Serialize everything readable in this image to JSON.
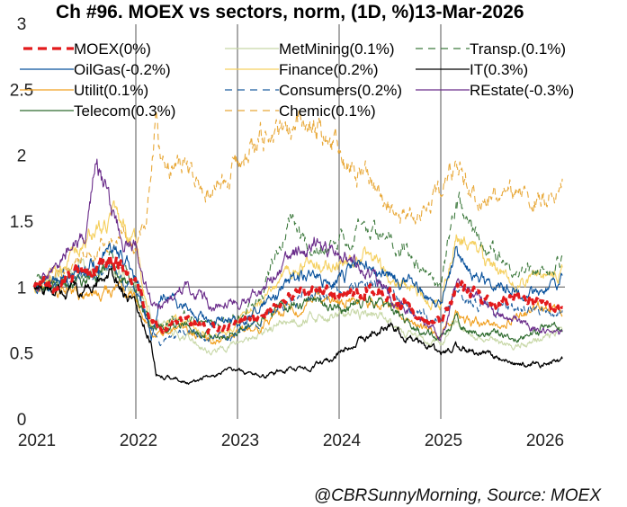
{
  "chart_data": {
    "type": "line",
    "title": "Ch #96. MOEX vs sectors, norm, (1D, %)13-Mar-2026",
    "xlabel": "",
    "ylabel": "",
    "xlim": [
      2021,
      2026.2
    ],
    "ylim": [
      0,
      3
    ],
    "x_ticks": [
      "2021",
      "2022",
      "2023",
      "2024",
      "2025",
      "2026"
    ],
    "y_ticks": [
      "0",
      "0.5",
      "1",
      "1.5",
      "2",
      "2.5",
      "3"
    ],
    "reference_line_y": 1,
    "vertical_gridlines_x": [
      2022,
      2023,
      2024,
      2025
    ],
    "legend_placement": "top",
    "source": "@CBRSunnyMorning, Source: MOEX",
    "series": [
      {
        "name": "MOEX",
        "label": "MOEX(0%)",
        "color": "#e31a1c",
        "style": "thick-dashed",
        "x": [
          2021.0,
          2021.25,
          2021.5,
          2021.75,
          2021.85,
          2022.0,
          2022.15,
          2022.25,
          2022.5,
          2022.75,
          2023.0,
          2023.25,
          2023.5,
          2023.75,
          2024.0,
          2024.25,
          2024.5,
          2024.75,
          2025.0,
          2025.15,
          2025.3,
          2025.5,
          2025.75,
          2026.0,
          2026.2
        ],
        "y": [
          1.0,
          1.04,
          1.1,
          1.2,
          1.17,
          1.05,
          0.72,
          0.7,
          0.75,
          0.68,
          0.7,
          0.8,
          0.95,
          0.98,
          0.92,
          0.98,
          0.97,
          0.8,
          0.7,
          1.0,
          0.97,
          0.88,
          0.9,
          0.85,
          0.85
        ]
      },
      {
        "name": "OilGas",
        "label": "OilGas(-0.2%)",
        "color": "#08519c",
        "style": "solid",
        "x": [
          2021.0,
          2021.25,
          2021.5,
          2021.75,
          2021.85,
          2022.0,
          2022.15,
          2022.25,
          2022.5,
          2022.75,
          2023.0,
          2023.25,
          2023.5,
          2023.75,
          2024.0,
          2024.25,
          2024.5,
          2024.75,
          2025.0,
          2025.15,
          2025.3,
          2025.5,
          2025.75,
          2026.0,
          2026.15,
          2026.2
        ],
        "y": [
          1.0,
          1.06,
          1.12,
          1.3,
          1.25,
          1.1,
          0.62,
          0.95,
          0.85,
          0.75,
          0.72,
          0.85,
          1.05,
          1.1,
          1.08,
          1.15,
          1.1,
          1.0,
          0.85,
          1.3,
          1.05,
          1.05,
          0.98,
          0.96,
          1.0,
          1.07
        ]
      },
      {
        "name": "Utilit",
        "label": "Utilit(0.1%)",
        "color": "#f0a020",
        "style": "solid",
        "x": [
          2021.0,
          2021.25,
          2021.5,
          2021.75,
          2022.0,
          2022.15,
          2022.25,
          2022.5,
          2022.75,
          2023.0,
          2023.25,
          2023.5,
          2023.75,
          2024.0,
          2024.25,
          2024.5,
          2024.75,
          2025.0,
          2025.15,
          2025.3,
          2025.5,
          2025.75,
          2026.0,
          2026.2
        ],
        "y": [
          1.0,
          0.97,
          0.92,
          1.0,
          0.95,
          0.65,
          0.65,
          0.68,
          0.58,
          0.65,
          0.72,
          0.85,
          0.9,
          0.88,
          0.92,
          0.88,
          0.72,
          0.65,
          0.8,
          0.72,
          0.72,
          0.8,
          0.85,
          0.78
        ]
      },
      {
        "name": "Telecom",
        "label": "Telecom(0.3%)",
        "color": "#2e6b2e",
        "style": "solid",
        "x": [
          2021.0,
          2021.25,
          2021.5,
          2021.75,
          2022.0,
          2022.15,
          2022.25,
          2022.5,
          2022.75,
          2023.0,
          2023.25,
          2023.5,
          2023.75,
          2024.0,
          2024.25,
          2024.5,
          2024.75,
          2025.0,
          2025.15,
          2025.3,
          2025.5,
          2025.75,
          2026.0,
          2026.2
        ],
        "y": [
          1.0,
          1.02,
          1.05,
          1.18,
          0.98,
          0.7,
          0.7,
          0.72,
          0.62,
          0.68,
          0.75,
          0.88,
          0.9,
          0.82,
          0.9,
          0.86,
          0.68,
          0.6,
          0.78,
          0.65,
          0.65,
          0.6,
          0.68,
          0.68
        ]
      },
      {
        "name": "MetMining",
        "label": "MetMining(0.1%)",
        "color": "#c8d8a8",
        "style": "solid",
        "x": [
          2021.0,
          2021.25,
          2021.5,
          2021.75,
          2022.0,
          2022.15,
          2022.25,
          2022.5,
          2022.75,
          2023.0,
          2023.25,
          2023.5,
          2023.75,
          2024.0,
          2024.25,
          2024.5,
          2024.75,
          2025.0,
          2025.15,
          2025.3,
          2025.5,
          2025.75,
          2026.0,
          2026.2
        ],
        "y": [
          1.0,
          1.08,
          1.12,
          1.15,
          1.0,
          0.78,
          0.7,
          0.62,
          0.5,
          0.58,
          0.65,
          0.75,
          0.78,
          0.78,
          0.8,
          0.76,
          0.62,
          0.58,
          0.7,
          0.6,
          0.58,
          0.55,
          0.62,
          0.66
        ]
      },
      {
        "name": "Finance",
        "label": "Finance(0.2%)",
        "color": "#f5d060",
        "style": "solid",
        "x": [
          2021.0,
          2021.25,
          2021.5,
          2021.75,
          2021.85,
          2022.0,
          2022.15,
          2022.25,
          2022.5,
          2022.75,
          2023.0,
          2023.25,
          2023.5,
          2023.75,
          2024.0,
          2024.25,
          2024.5,
          2024.75,
          2025.0,
          2025.15,
          2025.3,
          2025.5,
          2025.75,
          2026.0,
          2026.2
        ],
        "y": [
          1.0,
          1.15,
          1.35,
          1.55,
          1.45,
          1.3,
          0.68,
          0.72,
          0.75,
          0.62,
          0.72,
          0.92,
          1.1,
          1.2,
          1.15,
          1.28,
          1.1,
          0.98,
          0.85,
          1.4,
          1.25,
          1.15,
          1.0,
          1.1,
          1.15
        ]
      },
      {
        "name": "Consumers",
        "label": "Consumers(0.2%)",
        "color": "#1f5fa0",
        "style": "dashed",
        "x": [
          2021.0,
          2021.25,
          2021.5,
          2021.75,
          2022.0,
          2022.15,
          2022.25,
          2022.5,
          2022.75,
          2023.0,
          2023.25,
          2023.5,
          2023.75,
          2024.0,
          2024.25,
          2024.5,
          2024.75,
          2025.0,
          2025.15,
          2025.3,
          2025.5,
          2025.75,
          2026.0,
          2026.2
        ],
        "y": [
          1.0,
          1.05,
          1.08,
          1.12,
          1.0,
          0.68,
          0.6,
          0.65,
          0.6,
          0.65,
          0.75,
          0.88,
          0.92,
          0.95,
          1.05,
          0.98,
          0.85,
          0.72,
          0.95,
          0.88,
          0.85,
          0.85,
          0.83,
          0.83
        ]
      },
      {
        "name": "Chemic",
        "label": "Chemic(0.1%)",
        "color": "#e8a838",
        "style": "dashed",
        "x": [
          2021.0,
          2021.25,
          2021.5,
          2021.75,
          2022.0,
          2022.1,
          2022.2,
          2022.25,
          2022.5,
          2022.75,
          2023.0,
          2023.25,
          2023.5,
          2023.75,
          2024.0,
          2024.25,
          2024.5,
          2024.75,
          2025.0,
          2025.15,
          2025.3,
          2025.5,
          2025.75,
          2026.0,
          2026.2
        ],
        "y": [
          1.0,
          1.1,
          1.25,
          1.4,
          1.3,
          1.5,
          2.35,
          1.95,
          1.9,
          1.7,
          1.95,
          2.1,
          2.2,
          2.3,
          2.0,
          1.85,
          1.6,
          1.55,
          1.75,
          1.95,
          1.75,
          1.65,
          1.7,
          1.65,
          1.8
        ]
      },
      {
        "name": "Transp",
        "label": "Transp.(0.1%)",
        "color": "#3e7a3e",
        "style": "dashed",
        "x": [
          2021.0,
          2021.25,
          2021.5,
          2021.75,
          2022.0,
          2022.15,
          2022.25,
          2022.5,
          2022.75,
          2023.0,
          2023.25,
          2023.5,
          2023.75,
          2024.0,
          2024.25,
          2024.5,
          2024.75,
          2025.0,
          2025.15,
          2025.3,
          2025.5,
          2025.75,
          2026.0,
          2026.2
        ],
        "y": [
          1.0,
          1.05,
          1.1,
          1.2,
          1.05,
          0.7,
          0.72,
          0.78,
          0.7,
          0.78,
          0.95,
          1.5,
          1.25,
          1.35,
          1.5,
          1.35,
          1.2,
          1.0,
          1.65,
          1.45,
          1.3,
          1.1,
          1.15,
          1.2
        ]
      },
      {
        "name": "IT",
        "label": "IT(0.3%)",
        "color": "#000000",
        "style": "solid",
        "x": [
          2021.0,
          2021.25,
          2021.5,
          2021.75,
          2022.0,
          2022.15,
          2022.2,
          2022.5,
          2022.75,
          2023.0,
          2023.25,
          2023.5,
          2023.75,
          2024.0,
          2024.25,
          2024.5,
          2024.75,
          2025.0,
          2025.15,
          2025.3,
          2025.5,
          2025.75,
          2026.0,
          2026.2
        ],
        "y": [
          1.0,
          0.95,
          0.98,
          1.1,
          0.85,
          0.6,
          0.35,
          0.28,
          0.32,
          0.38,
          0.32,
          0.38,
          0.4,
          0.5,
          0.6,
          0.72,
          0.58,
          0.5,
          0.55,
          0.52,
          0.48,
          0.42,
          0.42,
          0.44
        ]
      },
      {
        "name": "REstate",
        "label": "REstate(-0.3%)",
        "color": "#6a2c8a",
        "style": "solid",
        "x": [
          2021.0,
          2021.25,
          2021.5,
          2021.6,
          2021.75,
          2021.85,
          2022.0,
          2022.15,
          2022.25,
          2022.5,
          2022.75,
          2023.0,
          2023.25,
          2023.5,
          2023.75,
          2024.0,
          2024.25,
          2024.5,
          2024.75,
          2025.0,
          2025.15,
          2025.3,
          2025.5,
          2025.75,
          2026.0,
          2026.2
        ],
        "y": [
          1.0,
          1.2,
          1.4,
          1.95,
          1.55,
          1.4,
          1.3,
          0.9,
          0.85,
          1.05,
          0.85,
          0.9,
          1.0,
          1.2,
          1.35,
          1.25,
          1.15,
          0.95,
          0.8,
          0.6,
          1.0,
          0.95,
          0.8,
          0.72,
          0.68,
          0.66
        ]
      }
    ]
  }
}
